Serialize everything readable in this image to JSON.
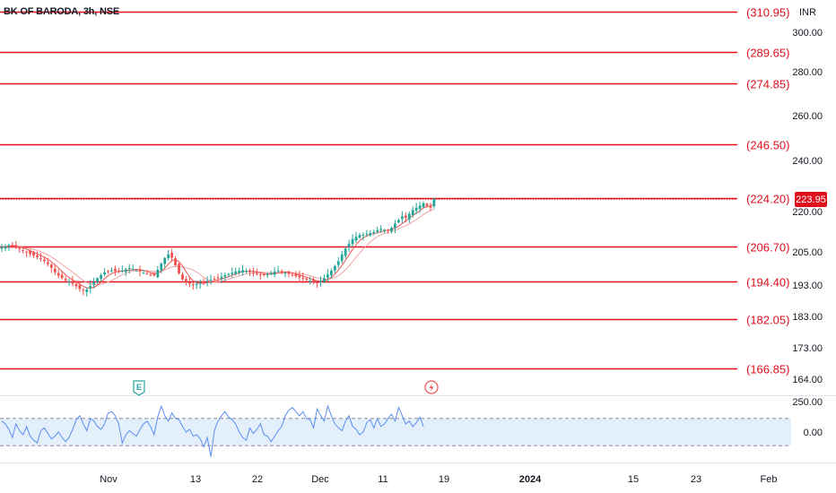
{
  "symbol": {
    "title": "BK OF BARODA, 3h, NSE",
    "currency": "INR"
  },
  "colors": {
    "up": "#26a69a",
    "down": "#ef5350",
    "level_line": "#e0101c",
    "ma_fast": "#ef5350",
    "ma_slow": "#e57373",
    "oscillator": "#5b8def",
    "oscillator_band": "#e3f0fb",
    "last_price_bg": "#e0101c",
    "axis_text": "#131722",
    "event_earnings": "#26a69a",
    "event_dividend": "#ef5350"
  },
  "price_axis": {
    "ticks": [
      "300.00",
      "280.00",
      "260.00",
      "240.00",
      "220.00",
      "205.00",
      "193.00",
      "183.00",
      "173.00",
      "164.00"
    ]
  },
  "oscillator_axis": {
    "ticks": [
      "250.00",
      "0.00"
    ]
  },
  "time_axis": {
    "ticks": [
      "Nov",
      "13",
      "22",
      "Dec",
      "11",
      "19",
      "2024",
      "15",
      "23",
      "Feb"
    ]
  },
  "last_price": {
    "label": "223.95",
    "value": 223.95
  },
  "events": [
    {
      "type": "earnings",
      "icon": "E"
    },
    {
      "type": "dividend",
      "icon": "lightning-icon"
    }
  ],
  "chart_data": {
    "type": "line",
    "title": "BK OF BARODA, 3h, NSE",
    "levels": [
      {
        "value": 310.95,
        "label": "(310.95)"
      },
      {
        "value": 289.65,
        "label": "(289.65)"
      },
      {
        "value": 274.85,
        "label": "(274.85)"
      },
      {
        "value": 246.5,
        "label": "(246.50)"
      },
      {
        "value": 224.2,
        "label": "(224.20)"
      },
      {
        "value": 206.7,
        "label": "(206.70)"
      },
      {
        "value": 194.4,
        "label": "(194.40)"
      },
      {
        "value": 182.05,
        "label": "(182.05)"
      },
      {
        "value": 166.85,
        "label": "(166.85)"
      }
    ],
    "x_range": [
      "Oct 2023",
      "Feb 2024"
    ],
    "y_range": [
      160,
      315
    ],
    "y_scale": "log",
    "price_closes": [
      206.5,
      206.8,
      207.2,
      206.9,
      206.2,
      205.8,
      205.2,
      204.6,
      204.0,
      203.4,
      202.9,
      202.3,
      201.5,
      200.4,
      199.1,
      197.6,
      196.4,
      195.6,
      194.8,
      194.3,
      193.6,
      192.8,
      191.9,
      191.3,
      191.7,
      192.9,
      194.2,
      195.5,
      196.6,
      197.5,
      197.9,
      198.2,
      198.0,
      197.7,
      198.2,
      198.6,
      199.0,
      198.7,
      198.2,
      197.8,
      197.4,
      197.1,
      196.8,
      196.5,
      198.4,
      200.6,
      202.6,
      203.9,
      202.7,
      200.0,
      197.2,
      195.1,
      194.0,
      193.6,
      193.4,
      193.6,
      194.0,
      194.3,
      194.6,
      194.9,
      195.2,
      195.5,
      196.0,
      196.6,
      197.0,
      197.4,
      197.8,
      198.1,
      198.3,
      198.0,
      197.7,
      197.3,
      197.0,
      196.8,
      196.6,
      196.9,
      197.3,
      197.8,
      198.1,
      197.8,
      197.4,
      197.0,
      196.6,
      196.2,
      195.8,
      195.4,
      195.0,
      194.6,
      194.3,
      194.0,
      194.6,
      195.5,
      196.8,
      198.1,
      199.7,
      201.4,
      203.8,
      206.0,
      207.6,
      209.3,
      210.1,
      210.8,
      210.8,
      211.2,
      211.4,
      211.8,
      212.4,
      212.9,
      212.6,
      212.5,
      213.3,
      214.8,
      216.1,
      217.4,
      216.9,
      218.4,
      219.8,
      220.6,
      221.4,
      222.3,
      221.3,
      220.6,
      223.95
    ],
    "oscillator": {
      "name": "",
      "band": [
        -100,
        100
      ],
      "values": [
        80,
        60,
        20,
        -40,
        60,
        10,
        -20,
        40,
        -30,
        -60,
        -80,
        10,
        30,
        -10,
        -50,
        -30,
        0,
        -40,
        -70,
        -40,
        20,
        90,
        120,
        60,
        10,
        100,
        80,
        40,
        20,
        60,
        140,
        150,
        120,
        60,
        -80,
        -20,
        10,
        -10,
        -30,
        20,
        60,
        80,
        40,
        -20,
        110,
        190,
        120,
        80,
        140,
        100,
        90,
        40,
        0,
        20,
        -30,
        -20,
        -50,
        -110,
        -40,
        -180,
        10,
        80,
        120,
        150,
        110,
        90,
        60,
        0,
        -40,
        -60,
        30,
        -10,
        20,
        60,
        -20,
        -30,
        -70,
        -30,
        10,
        40,
        120,
        160,
        180,
        150,
        120,
        150,
        100,
        90,
        30,
        170,
        120,
        80,
        190,
        120,
        60,
        30,
        10,
        80,
        120,
        40,
        20,
        -20,
        0,
        70,
        90,
        30,
        100,
        40,
        60,
        100,
        130,
        80,
        180,
        120,
        60,
        80,
        40,
        70,
        110,
        40
      ]
    }
  }
}
